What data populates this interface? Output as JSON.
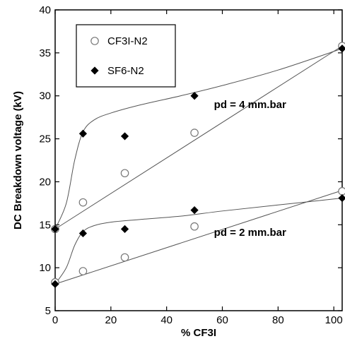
{
  "chart_data": {
    "type": "scatter",
    "xlabel": "% CF3I",
    "ylabel": "DC Breakdown voltage (kV)",
    "xlim": [
      0,
      103
    ],
    "ylim": [
      5,
      40
    ],
    "xticks": [
      0,
      20,
      40,
      60,
      80,
      100
    ],
    "yticks": [
      5,
      10,
      15,
      20,
      25,
      30,
      35,
      40
    ],
    "grid": false,
    "legend": "top-left",
    "series": [
      {
        "name": "CF3I-N2",
        "marker": "open-circle",
        "color": "#777777",
        "x": [
          0,
          0,
          10,
          25,
          50,
          103,
          0,
          10,
          25,
          50,
          103
        ],
        "y": [
          14.5,
          8.3,
          17.6,
          21.0,
          25.7,
          35.8,
          8.3,
          9.6,
          11.2,
          14.8,
          18.9
        ]
      },
      {
        "name": "SF6-N2",
        "marker": "filled-diamond",
        "color": "#000000",
        "x": [
          0,
          10,
          25,
          50,
          103,
          0,
          10,
          25,
          50,
          103
        ],
        "y": [
          14.5,
          25.6,
          25.3,
          30.0,
          35.5,
          8.1,
          14.0,
          14.5,
          16.7,
          18.1
        ]
      }
    ],
    "fit_lines": [
      {
        "x": [
          0,
          103
        ],
        "y": [
          14.5,
          35.8
        ]
      },
      {
        "x": [
          0,
          4,
          7,
          10,
          14,
          20,
          30,
          45,
          60,
          80,
          103
        ],
        "y": [
          14.5,
          17.5,
          22.5,
          25.8,
          27.2,
          28.0,
          28.9,
          30.0,
          31.2,
          33.0,
          35.5
        ]
      },
      {
        "x": [
          0,
          103
        ],
        "y": [
          8.1,
          19.0
        ]
      },
      {
        "x": [
          0,
          4,
          7,
          10,
          14,
          20,
          30,
          45,
          60,
          80,
          103
        ],
        "y": [
          8.1,
          10.0,
          12.6,
          14.2,
          14.9,
          15.3,
          15.6,
          16.0,
          16.6,
          17.3,
          18.1
        ]
      }
    ],
    "annotations": [
      {
        "text": "pd = 4 mm.bar",
        "x": 57,
        "y": 28.6
      },
      {
        "text": "pd = 2 mm.bar",
        "x": 57,
        "y": 13.7
      }
    ]
  }
}
